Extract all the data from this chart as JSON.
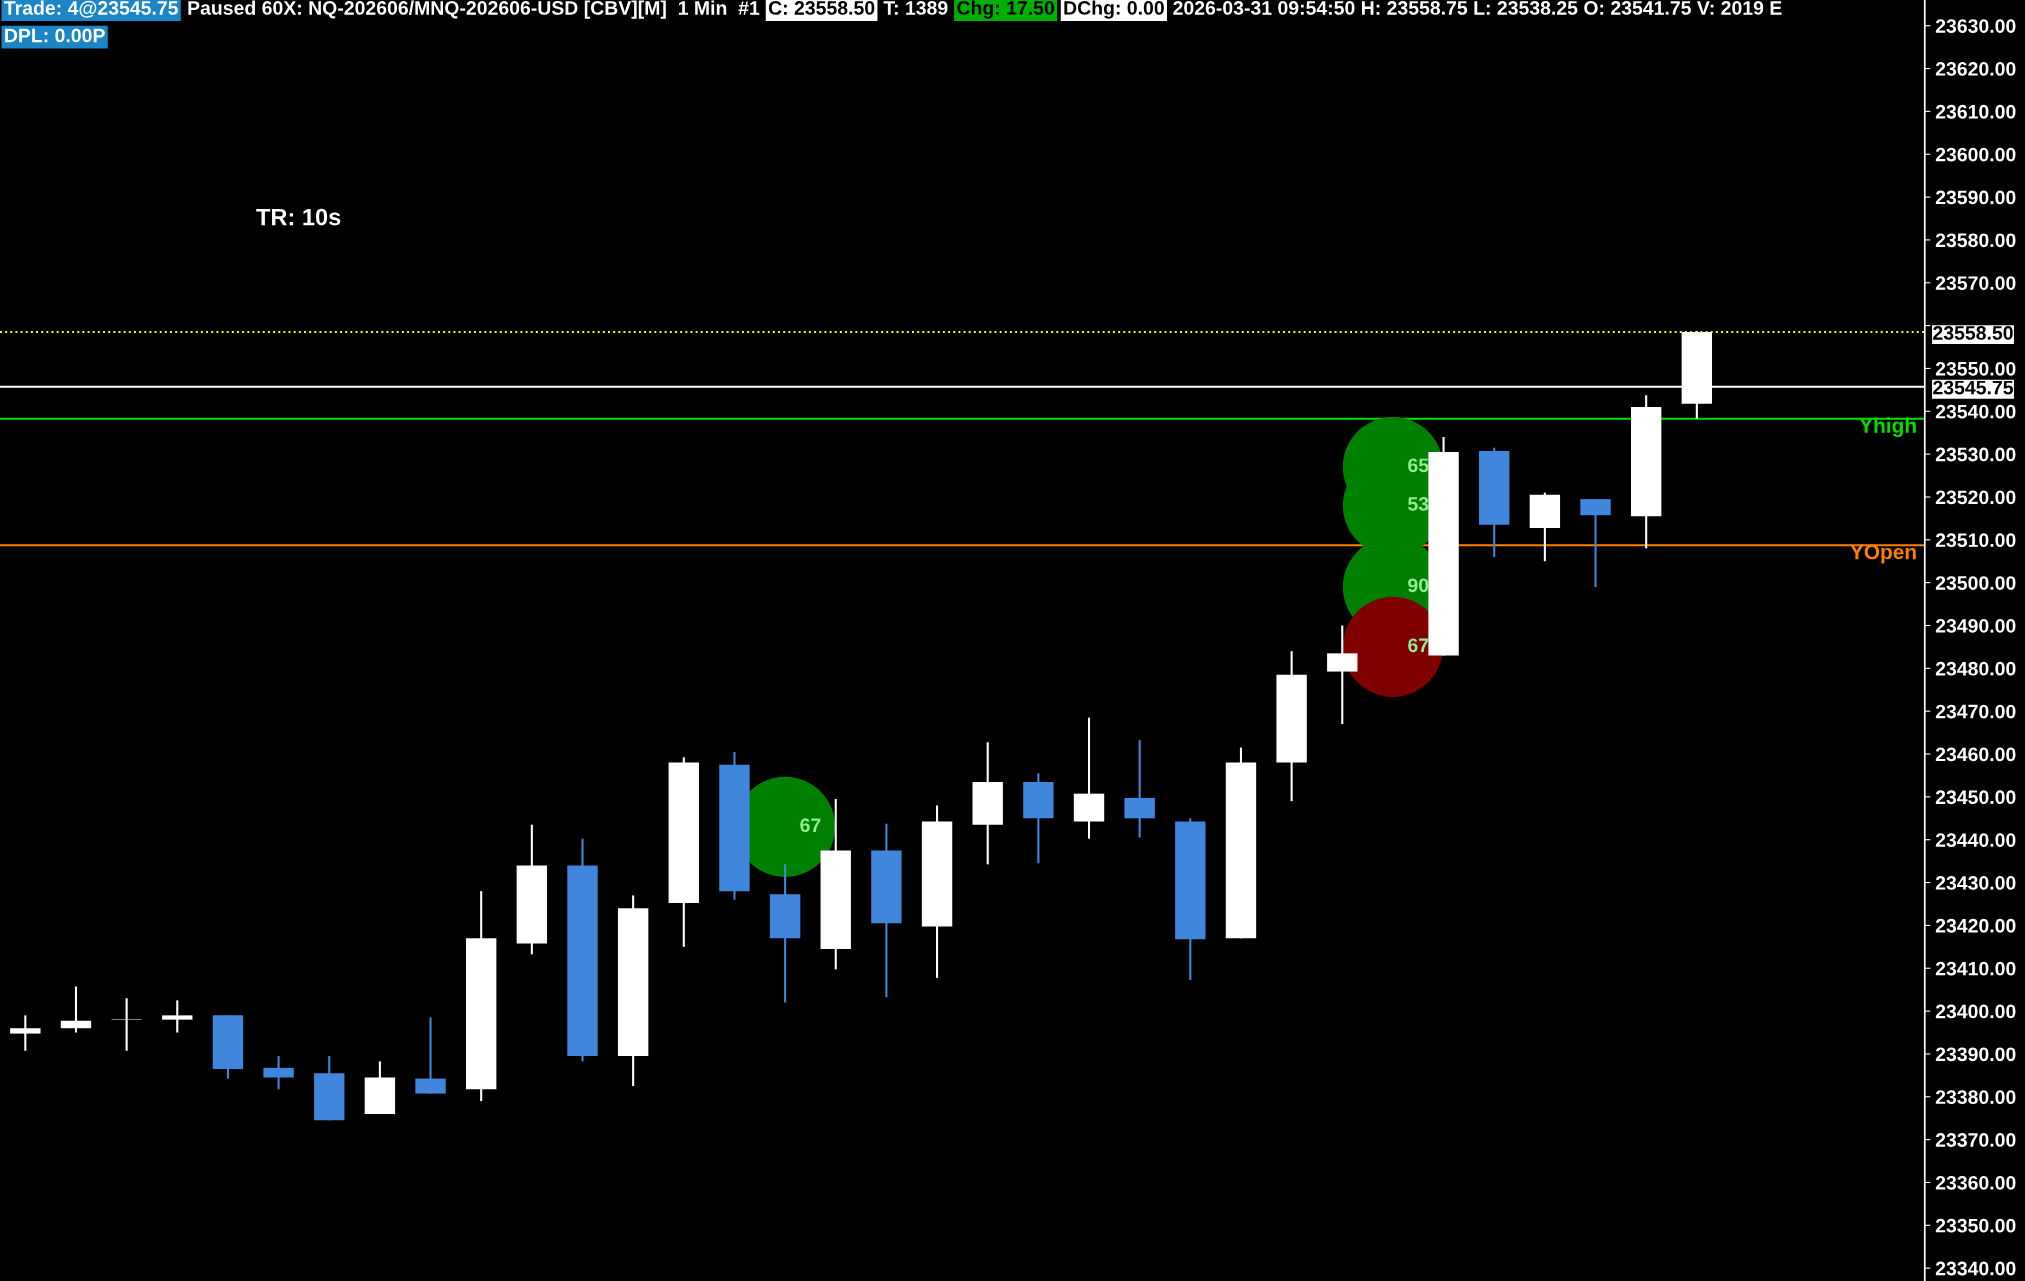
{
  "chart_data": {
    "type": "candlestick",
    "categories": [
      null,
      null,
      null,
      null,
      null,
      null,
      null,
      null,
      null,
      null,
      null,
      null,
      null,
      null,
      null,
      null,
      null,
      null,
      null,
      null,
      null,
      null,
      null,
      null,
      null,
      null,
      null,
      null,
      null,
      null,
      null,
      null,
      null,
      null,
      null,
      null,
      null,
      null
    ],
    "ylim": [
      23337,
      23636
    ],
    "yticks": [
      {
        "value": 23340,
        "label": "23340.00"
      },
      {
        "value": 23350,
        "label": "23350.00"
      },
      {
        "value": 23360,
        "label": "23360.00"
      },
      {
        "value": 23370,
        "label": "23370.00"
      },
      {
        "value": 23380,
        "label": "23380.00"
      },
      {
        "value": 23390,
        "label": "23390.00"
      },
      {
        "value": 23400,
        "label": "23400.00"
      },
      {
        "value": 23410,
        "label": "23410.00"
      },
      {
        "value": 23420,
        "label": "23420.00"
      },
      {
        "value": 23430,
        "label": "23430.00"
      },
      {
        "value": 23440,
        "label": "23440.00"
      },
      {
        "value": 23450,
        "label": "23450.00"
      },
      {
        "value": 23460,
        "label": "23460.00"
      },
      {
        "value": 23470,
        "label": "23470.00"
      },
      {
        "value": 23480,
        "label": "23480.00"
      },
      {
        "value": 23490,
        "label": "23490.00"
      },
      {
        "value": 23500,
        "label": "23500.00"
      },
      {
        "value": 23510,
        "label": "23510.00"
      },
      {
        "value": 23520,
        "label": "23520.00"
      },
      {
        "value": 23530,
        "label": "23530.00"
      },
      {
        "value": 23540,
        "label": "23540.00"
      },
      {
        "value": 23550,
        "label": "23550.00"
      },
      {
        "value": 23560,
        "label": null
      },
      {
        "value": 23570,
        "label": "23570.00"
      },
      {
        "value": 23580,
        "label": "23580.00"
      },
      {
        "value": 23590,
        "label": "23590.00"
      },
      {
        "value": 23600,
        "label": "23600.00"
      },
      {
        "value": 23610,
        "label": "23610.00"
      },
      {
        "value": 23620,
        "label": "23620.00"
      },
      {
        "value": 23630,
        "label": "23630.00"
      }
    ],
    "tick_labels": "y",
    "grid": false,
    "legend": false,
    "ohlc": [
      [
        23394.75,
        23399,
        23390.75,
        23396
      ],
      [
        23396,
        23405.75,
        23395,
        23397.75
      ],
      [
        23398,
        23403,
        23390.75,
        23398
      ],
      [
        23398,
        23402.5,
        23395,
        23399
      ],
      [
        23399,
        23399,
        23384.25,
        23386.5
      ],
      [
        23386.75,
        23389.5,
        23381.75,
        23384.5
      ],
      [
        23385.5,
        23389.5,
        23374.5,
        23374.5
      ],
      [
        23376,
        23388.25,
        23376,
        23384.5
      ],
      [
        23384.25,
        23398.5,
        23380.75,
        23380.75
      ],
      [
        23381.75,
        23428,
        23379,
        23417
      ],
      [
        23415.75,
        23443.5,
        23413.25,
        23434
      ],
      [
        23434,
        23440.25,
        23388.25,
        23389.5
      ],
      [
        23389.5,
        23427,
        23382.5,
        23424
      ],
      [
        23425.25,
        23459.25,
        23415,
        23458
      ],
      [
        23457.5,
        23460.5,
        23426,
        23428
      ],
      [
        23427.25,
        23434.25,
        23402,
        23417
      ],
      [
        23414.5,
        23449.5,
        23409.75,
        23437.5
      ],
      [
        23437.5,
        23443.75,
        23403.25,
        23420.5
      ],
      [
        23419.75,
        23448,
        23407.75,
        23444.25
      ],
      [
        23443.5,
        23462.75,
        23434.25,
        23453.5
      ],
      [
        23453.5,
        23455.5,
        23434.5,
        23445
      ],
      [
        23444.25,
        23468.5,
        23440.25,
        23450.75
      ],
      [
        23449.75,
        23463.25,
        23440.5,
        23445
      ],
      [
        23444.25,
        23445,
        23407.25,
        23416.75
      ],
      [
        23417,
        23461.5,
        23417,
        23458
      ],
      [
        23458,
        23484,
        23449,
        23478.5
      ],
      [
        23479.25,
        23490,
        23467,
        23483.5
      ],
      null,
      [
        23483,
        23534,
        23483,
        23530.5
      ],
      [
        23530.75,
        23531.5,
        23506,
        23513.5
      ],
      [
        23512.75,
        23521,
        23505,
        23520.5
      ],
      [
        23519.5,
        23519.5,
        23499,
        23515.75
      ],
      [
        23515.5,
        23543.75,
        23508,
        23541
      ],
      [
        23541.75,
        23558.75,
        23538.25,
        23558.5
      ],
      null,
      null,
      null,
      null
    ],
    "colors": [
      "#ffffff",
      "#ffffff",
      "#ffffff",
      "#ffffff",
      "#3f86dc",
      "#3f86dc",
      "#3f86dc",
      "#ffffff",
      "#3f86dc",
      "#ffffff",
      "#ffffff",
      "#3f86dc",
      "#ffffff",
      "#ffffff",
      "#3f86dc",
      "#3f86dc",
      "#ffffff",
      "#3f86dc",
      "#ffffff",
      "#ffffff",
      "#3f86dc",
      "#ffffff",
      "#3f86dc",
      "#3f86dc",
      "#ffffff",
      "#ffffff",
      "#ffffff",
      null,
      "#ffffff",
      "#3f86dc",
      "#ffffff",
      "#3f86dc",
      "#ffffff",
      "#ffffff",
      null,
      null,
      null,
      null
    ],
    "series": [
      {
        "type": "scatter",
        "color": "#008000",
        "values": [
          null,
          null,
          null,
          null,
          null,
          null,
          null,
          null,
          null,
          null,
          null,
          null,
          null,
          null,
          null,
          23443,
          null,
          null,
          null,
          null,
          null,
          null,
          null,
          null,
          null,
          null,
          null,
          23527,
          null,
          null,
          null,
          null,
          null,
          null,
          null,
          null,
          null,
          null
        ]
      },
      {
        "type": "scatter",
        "color": "#008000",
        "values": [
          null,
          null,
          null,
          null,
          null,
          null,
          null,
          null,
          null,
          null,
          null,
          null,
          null,
          null,
          null,
          null,
          null,
          null,
          null,
          null,
          null,
          null,
          null,
          null,
          null,
          null,
          null,
          23518,
          null,
          null,
          null,
          null,
          null,
          null,
          null,
          null,
          null,
          null
        ]
      },
      {
        "type": "scatter",
        "color": "#008000",
        "values": [
          null,
          null,
          null,
          null,
          null,
          null,
          null,
          null,
          null,
          null,
          null,
          null,
          null,
          null,
          null,
          null,
          null,
          null,
          null,
          null,
          null,
          null,
          null,
          null,
          null,
          null,
          null,
          23499,
          null,
          null,
          null,
          null,
          null,
          null,
          null,
          null,
          null,
          null
        ]
      },
      {
        "type": "scatter",
        "color": "#800000",
        "values": [
          null,
          null,
          null,
          null,
          null,
          null,
          null,
          null,
          null,
          null,
          null,
          null,
          null,
          null,
          null,
          null,
          null,
          null,
          null,
          null,
          null,
          null,
          null,
          null,
          null,
          null,
          null,
          23485,
          null,
          null,
          null,
          null,
          null,
          null,
          null,
          null,
          null,
          null
        ]
      }
    ],
    "ref_lines": [
      {
        "axis": "y",
        "value": 23558.5,
        "label": "23558.50",
        "color": "#ffff00",
        "line_style": "dotted"
      },
      {
        "axis": "y",
        "value": 23545.75,
        "label": "23545.75",
        "color": "#ffffff",
        "line_style": "solid"
      },
      {
        "axis": "y",
        "value": 23538.25,
        "label": "Yhigh",
        "color": "#00e000",
        "line_style": "solid"
      },
      {
        "axis": "y",
        "value": 23508.75,
        "label": "YOpen",
        "color": "#ff8000",
        "line_style": "solid"
      }
    ],
    "annotations": [
      "Trade: 4@23545.75",
      "Paused 60X: NQ-202606/MNQ-202606-USD [CBV][M]  1 Min  #1",
      "C: 23558.50",
      "T: 1389",
      "Chg: 17.50",
      "DChg: 0.00",
      "2026-03-31 09:54:50 H: 23558.75 L: 23538.25 O: 23541.75 V: 2019 E",
      "DPL: 0.00P",
      "TR: 10s",
      "67",
      "65",
      "53",
      "90",
      "67"
    ]
  }
}
